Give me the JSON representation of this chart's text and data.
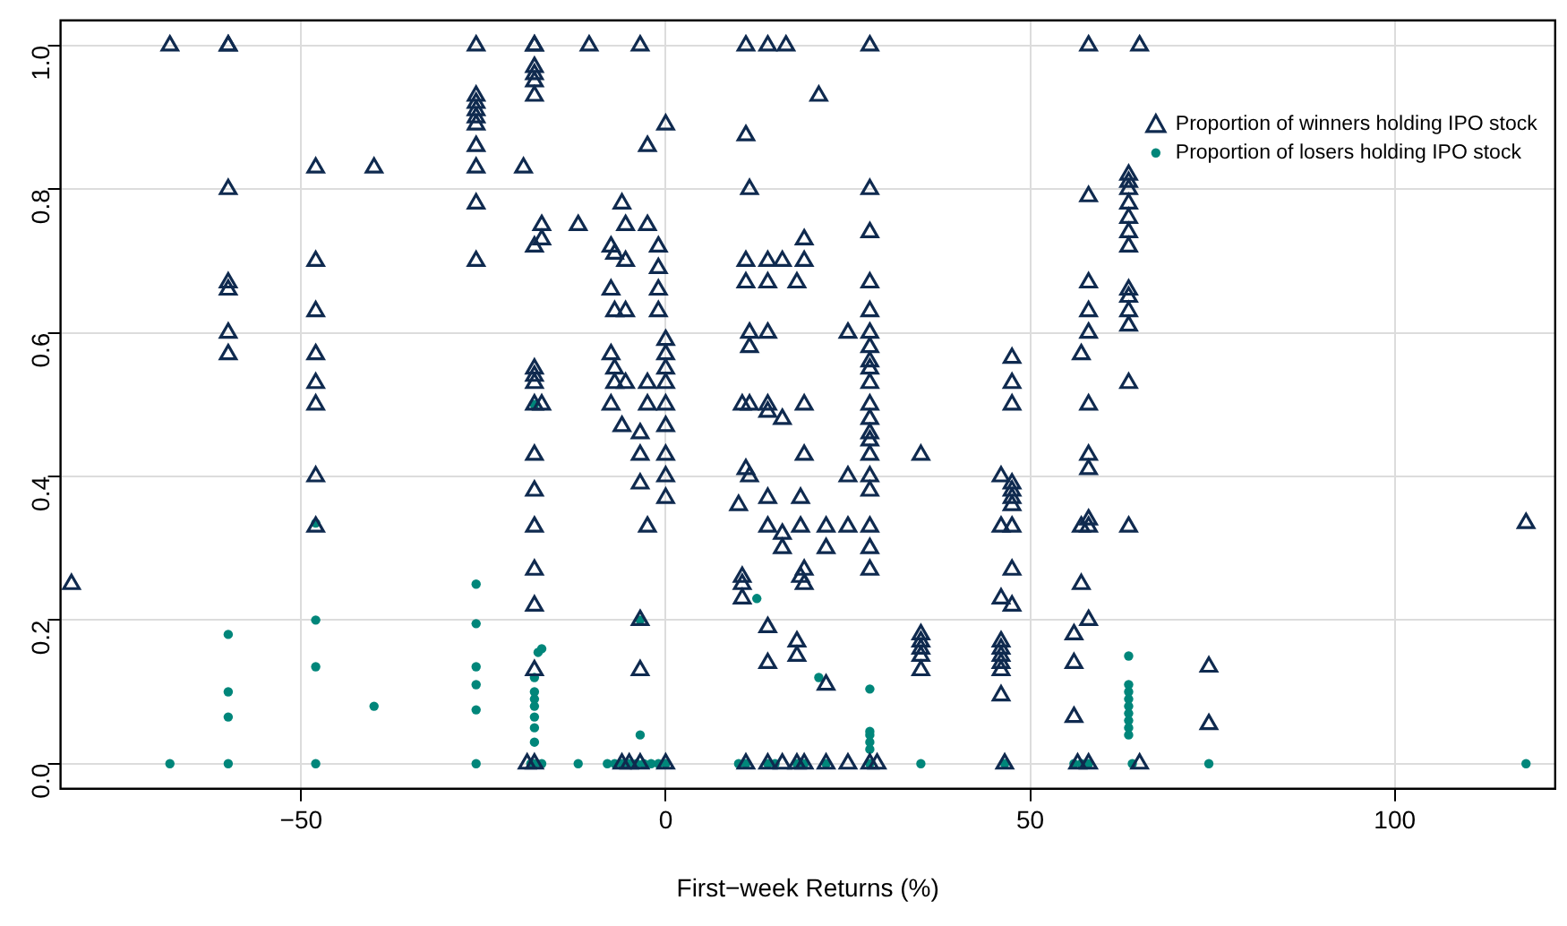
{
  "chart_data": {
    "type": "scatter",
    "xlabel": "First−week Returns (%)",
    "xlim": [
      -83,
      122
    ],
    "ylim": [
      -0.035,
      1.035
    ],
    "xticks": [
      {
        "value": -50,
        "label": "−50"
      },
      0,
      50,
      100
    ],
    "yticks": [
      {
        "value": 0,
        "label": "0.0"
      },
      {
        "value": 0.2,
        "label": "0.2"
      },
      {
        "value": 0.4,
        "label": "0.4"
      },
      {
        "value": 0.6,
        "label": "0.6"
      },
      {
        "value": 0.8,
        "label": "0.8"
      },
      {
        "value": 1,
        "label": "1.0"
      }
    ],
    "grid": true,
    "legend": "top right",
    "series": [
      {
        "name": "Proportion of winners holding IPO stock",
        "color": "#0f2a4f",
        "marker": "triangle",
        "x": [
          -81.5,
          -68,
          -60,
          -60,
          -60,
          -60,
          -60,
          -60,
          -60,
          -48,
          -48,
          -48,
          -48,
          -48,
          -48,
          -48,
          -48,
          -40,
          -26,
          -26,
          -26,
          -26,
          -26,
          -26,
          -26,
          -26,
          -26,
          -26,
          -19.5,
          -18,
          -18,
          -18,
          -18,
          -18,
          -18,
          -18,
          -18,
          -18,
          -18,
          -18,
          -18,
          -18,
          -18,
          -18,
          -18,
          -18,
          -18,
          -19,
          -17,
          -17,
          -17,
          -12,
          -10.5,
          -7.5,
          -7,
          -7.5,
          -7,
          -7.5,
          -7,
          -7,
          -7.5,
          -6,
          -6,
          -5.5,
          -5.5,
          -5.5,
          -5.5,
          -5,
          -6,
          -3.5,
          -3.5,
          -3.5,
          -3.5,
          -3.5,
          -3.5,
          -3.5,
          -2.5,
          -2.5,
          -2.5,
          -2.5,
          -2.5,
          -1,
          -1,
          -1,
          -1,
          0,
          0,
          0,
          0,
          0,
          0,
          0,
          0,
          0,
          0,
          0,
          10,
          10.5,
          10.5,
          10.5,
          10.5,
          11.5,
          11,
          11.5,
          11,
          11,
          11,
          11.5,
          11.5,
          11,
          11.5,
          11,
          14,
          14,
          14,
          14,
          14,
          14,
          14,
          14,
          14,
          14,
          14,
          16.5,
          16,
          16,
          16,
          16,
          16,
          18,
          18.5,
          18.5,
          18.5,
          18,
          18,
          18,
          19,
          19,
          19,
          19,
          19,
          19,
          19,
          21,
          22,
          22,
          22,
          22,
          25,
          25,
          25,
          25,
          28,
          28,
          28,
          28,
          28,
          28,
          28,
          28,
          28,
          28,
          28,
          28,
          28,
          28,
          28,
          28,
          28,
          28,
          28,
          28,
          28,
          29,
          35,
          35,
          35,
          35,
          35,
          35,
          46,
          46,
          46,
          46,
          46,
          46,
          46,
          46,
          46,
          46.5,
          47.5,
          47.5,
          47.5,
          47.5,
          47.5,
          47.5,
          47.5,
          47.5,
          47.5,
          47.5,
          56,
          56,
          56,
          56.5,
          57,
          57,
          57,
          58,
          58,
          58,
          58,
          58,
          58,
          58,
          58,
          58,
          58,
          58,
          58,
          63.5,
          63.5,
          63.5,
          63.5,
          63.5,
          63.5,
          63.5,
          63.5,
          63.5,
          63.5,
          63.5,
          63.5,
          63.5,
          65,
          65,
          74.5,
          74.5,
          118
        ],
        "values": [
          0.25,
          1.0,
          1.0,
          1.0,
          0.8,
          0.67,
          0.66,
          0.6,
          0.57,
          0.83,
          0.7,
          0.63,
          0.57,
          0.53,
          0.5,
          0.4,
          0.33,
          0.83,
          1.0,
          0.93,
          0.92,
          0.91,
          0.9,
          0.89,
          0.86,
          0.83,
          0.78,
          0.7,
          0.83,
          1.0,
          1.0,
          0.97,
          0.96,
          0.95,
          0.93,
          0.72,
          0.55,
          0.54,
          0.53,
          0.5,
          0.43,
          0.38,
          0.33,
          0.27,
          0.22,
          0.13,
          0.0,
          0.0,
          0.75,
          0.73,
          0.5,
          0.75,
          1.0,
          0.72,
          0.71,
          0.66,
          0.63,
          0.57,
          0.55,
          0.53,
          0.5,
          0.47,
          0.78,
          0.75,
          0.7,
          0.63,
          0.53,
          0.0,
          0.0,
          1.0,
          0.46,
          0.43,
          0.39,
          0.2,
          0.13,
          0.0,
          0.86,
          0.75,
          0.53,
          0.5,
          0.33,
          0.72,
          0.69,
          0.66,
          0.63,
          0.59,
          0.57,
          0.55,
          0.53,
          0.5,
          0.47,
          0.43,
          0.4,
          0.37,
          0.0,
          0.89,
          0.36,
          0.26,
          0.25,
          0.23,
          0.5,
          0.5,
          1.0,
          0.8,
          0.875,
          0.7,
          0.67,
          0.6,
          0.58,
          0.41,
          0.4,
          0.0,
          1.0,
          0.7,
          0.67,
          0.6,
          0.5,
          0.49,
          0.37,
          0.33,
          0.19,
          0.14,
          0.0,
          1.0,
          0.7,
          0.48,
          0.32,
          0.3,
          0.0,
          0.67,
          0.33,
          0.37,
          0.26,
          0.17,
          0.15,
          0.0,
          0.0,
          0.73,
          0.7,
          0.5,
          0.43,
          0.27,
          0.25,
          0.93,
          0.33,
          0.3,
          0.11,
          0.0,
          0.6,
          0.4,
          0.33,
          0.0,
          1.0,
          0.8,
          0.74,
          0.67,
          0.63,
          0.6,
          0.58,
          0.56,
          0.55,
          0.53,
          0.5,
          0.48,
          0.46,
          0.45,
          0.43,
          0.4,
          0.38,
          0.33,
          0.3,
          0.27,
          0.0,
          0.0,
          0.43,
          0.18,
          0.17,
          0.16,
          0.15,
          0.13,
          0.4,
          0.33,
          0.23,
          0.17,
          0.16,
          0.15,
          0.14,
          0.13,
          0.095,
          0.0,
          0.565,
          0.53,
          0.5,
          0.39,
          0.38,
          0.37,
          0.36,
          0.33,
          0.27,
          0.22,
          0.18,
          0.14,
          0.065,
          0.0,
          0.57,
          0.33,
          0.25,
          1.0,
          0.79,
          0.67,
          0.63,
          0.6,
          0.5,
          0.43,
          0.41,
          0.34,
          0.33,
          0.2,
          0.0,
          0.82,
          0.81,
          0.8,
          0.78,
          0.76,
          0.74,
          0.72,
          0.66,
          0.65,
          0.63,
          0.61,
          0.53,
          0.33,
          1.0,
          0.0,
          0.135,
          0.055,
          0.335
        ]
      },
      {
        "name": "Proportion of losers holding IPO stock",
        "color": "#00867a",
        "marker": "circle",
        "x": [
          -68,
          -60,
          -60,
          -60,
          -60,
          -48,
          -48,
          -48,
          -48,
          -40,
          -26,
          -26,
          -26,
          -26,
          -26,
          -26,
          -18,
          -18.5,
          -17,
          -18,
          -18,
          -18,
          -18,
          -18,
          -18,
          -18,
          -17.5,
          -17,
          -18,
          -12,
          -8,
          -7,
          -6,
          -5,
          -4,
          -3,
          -2,
          -1,
          0,
          -3.5,
          -3.5,
          10,
          11,
          14,
          15,
          12.5,
          18,
          19,
          21,
          22,
          28,
          28,
          28,
          28,
          28,
          28,
          35,
          46.5,
          56,
          57,
          58,
          63.5,
          63.5,
          63.5,
          63.5,
          63.5,
          63.5,
          63.5,
          63.5,
          63.5,
          64,
          74.5,
          118
        ],
        "values": [
          0,
          0,
          0.065,
          0.1,
          0.18,
          0,
          0.135,
          0.2,
          0.335,
          0.08,
          0,
          0.075,
          0.11,
          0.135,
          0.195,
          0.25,
          0,
          0,
          0,
          0.03,
          0.05,
          0.065,
          0.08,
          0.09,
          0.1,
          0.12,
          0.155,
          0.16,
          0.5,
          0,
          0,
          0,
          0,
          0,
          0,
          0,
          0,
          0,
          0,
          0.04,
          0.2,
          0,
          0,
          0,
          0,
          0.23,
          0,
          0,
          0.12,
          0,
          0,
          0.02,
          0.03,
          0.04,
          0.045,
          0.104,
          0,
          0,
          0,
          0,
          0,
          0.15,
          0.11,
          0.1,
          0.09,
          0.08,
          0.07,
          0.06,
          0.05,
          0.04,
          0,
          0,
          0
        ]
      }
    ]
  }
}
